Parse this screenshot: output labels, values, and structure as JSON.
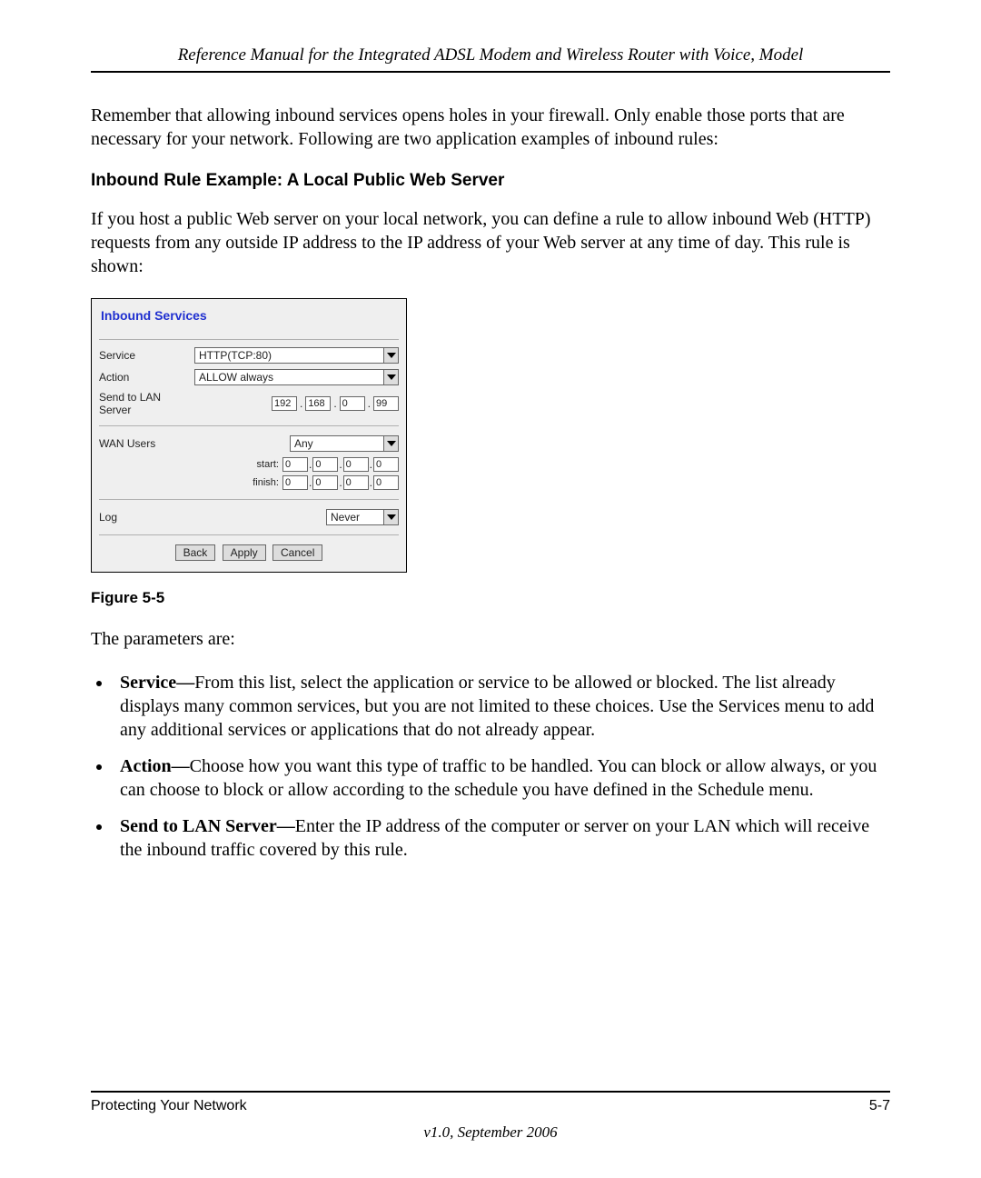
{
  "header": {
    "title": "Reference Manual for the Integrated ADSL Modem and Wireless Router with Voice, Model"
  },
  "para1": "Remember that allowing inbound services opens holes in your firewall. Only enable those ports that are necessary for your network. Following are two application examples of inbound rules:",
  "section_heading": "Inbound Rule Example: A Local Public Web Server",
  "para2": "If you host a public Web server on your local network, you can define a rule to allow inbound Web (HTTP) requests from any outside IP address to the IP address of your Web server at any time of day. This rule is shown:",
  "figure": {
    "panel_title": "Inbound Services",
    "rows": {
      "service": {
        "label": "Service",
        "value": "HTTP(TCP:80)"
      },
      "action": {
        "label": "Action",
        "value": "ALLOW always"
      },
      "send_to": {
        "label": "Send to LAN Server",
        "ip": [
          "192",
          "168",
          "0",
          "99"
        ]
      },
      "wan_users": {
        "label": "WAN Users",
        "value": "Any",
        "start_label": "start:",
        "start_ip": [
          "0",
          "0",
          "0",
          "0"
        ],
        "finish_label": "finish:",
        "finish_ip": [
          "0",
          "0",
          "0",
          "0"
        ]
      },
      "log": {
        "label": "Log",
        "value": "Never"
      }
    },
    "buttons": {
      "back": "Back",
      "apply": "Apply",
      "cancel": "Cancel"
    },
    "caption": "Figure 5-5"
  },
  "para3": "The parameters are:",
  "bullets": {
    "b1": {
      "term": "Service—",
      "text": "From this list, select the application or service to be allowed or blocked. The list already displays many common services, but you are not limited to these choices. Use the Services menu to add any additional services or applications that do not already appear."
    },
    "b2": {
      "term": "Action—",
      "text": "Choose how you want this type of traffic to be handled. You can block or allow always, or you can choose to block or allow according to the schedule you have defined in the Schedule menu."
    },
    "b3": {
      "term": "Send to LAN Server—",
      "text": "Enter the IP address of the computer or server on your LAN which will receive the inbound traffic covered by this rule."
    }
  },
  "footer": {
    "left": "Protecting Your Network",
    "right": "5-7",
    "version": "v1.0, September 2006"
  }
}
